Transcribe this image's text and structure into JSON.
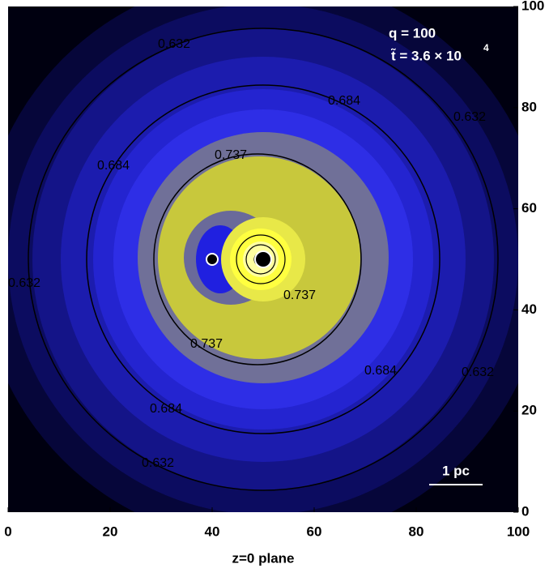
{
  "chart_data": {
    "type": "contour",
    "xlabel": "z=0 plane",
    "xlim": [
      0,
      100
    ],
    "ylim": [
      0,
      100
    ],
    "xticks": [
      0,
      20,
      40,
      60,
      80,
      100
    ],
    "yticks": [
      0,
      20,
      40,
      60,
      80,
      100
    ],
    "levels": [
      0.632,
      0.684,
      0.737
    ],
    "level_color": "#000000",
    "points": {
      "x": [
        40,
        50
      ],
      "y": [
        50,
        50
      ]
    },
    "annotations": {
      "mass_ratio": "q = 100",
      "time_label": "t̃ = 3.6 × 10",
      "time_exponent": "4",
      "scale_bar": "1 pc"
    }
  }
}
